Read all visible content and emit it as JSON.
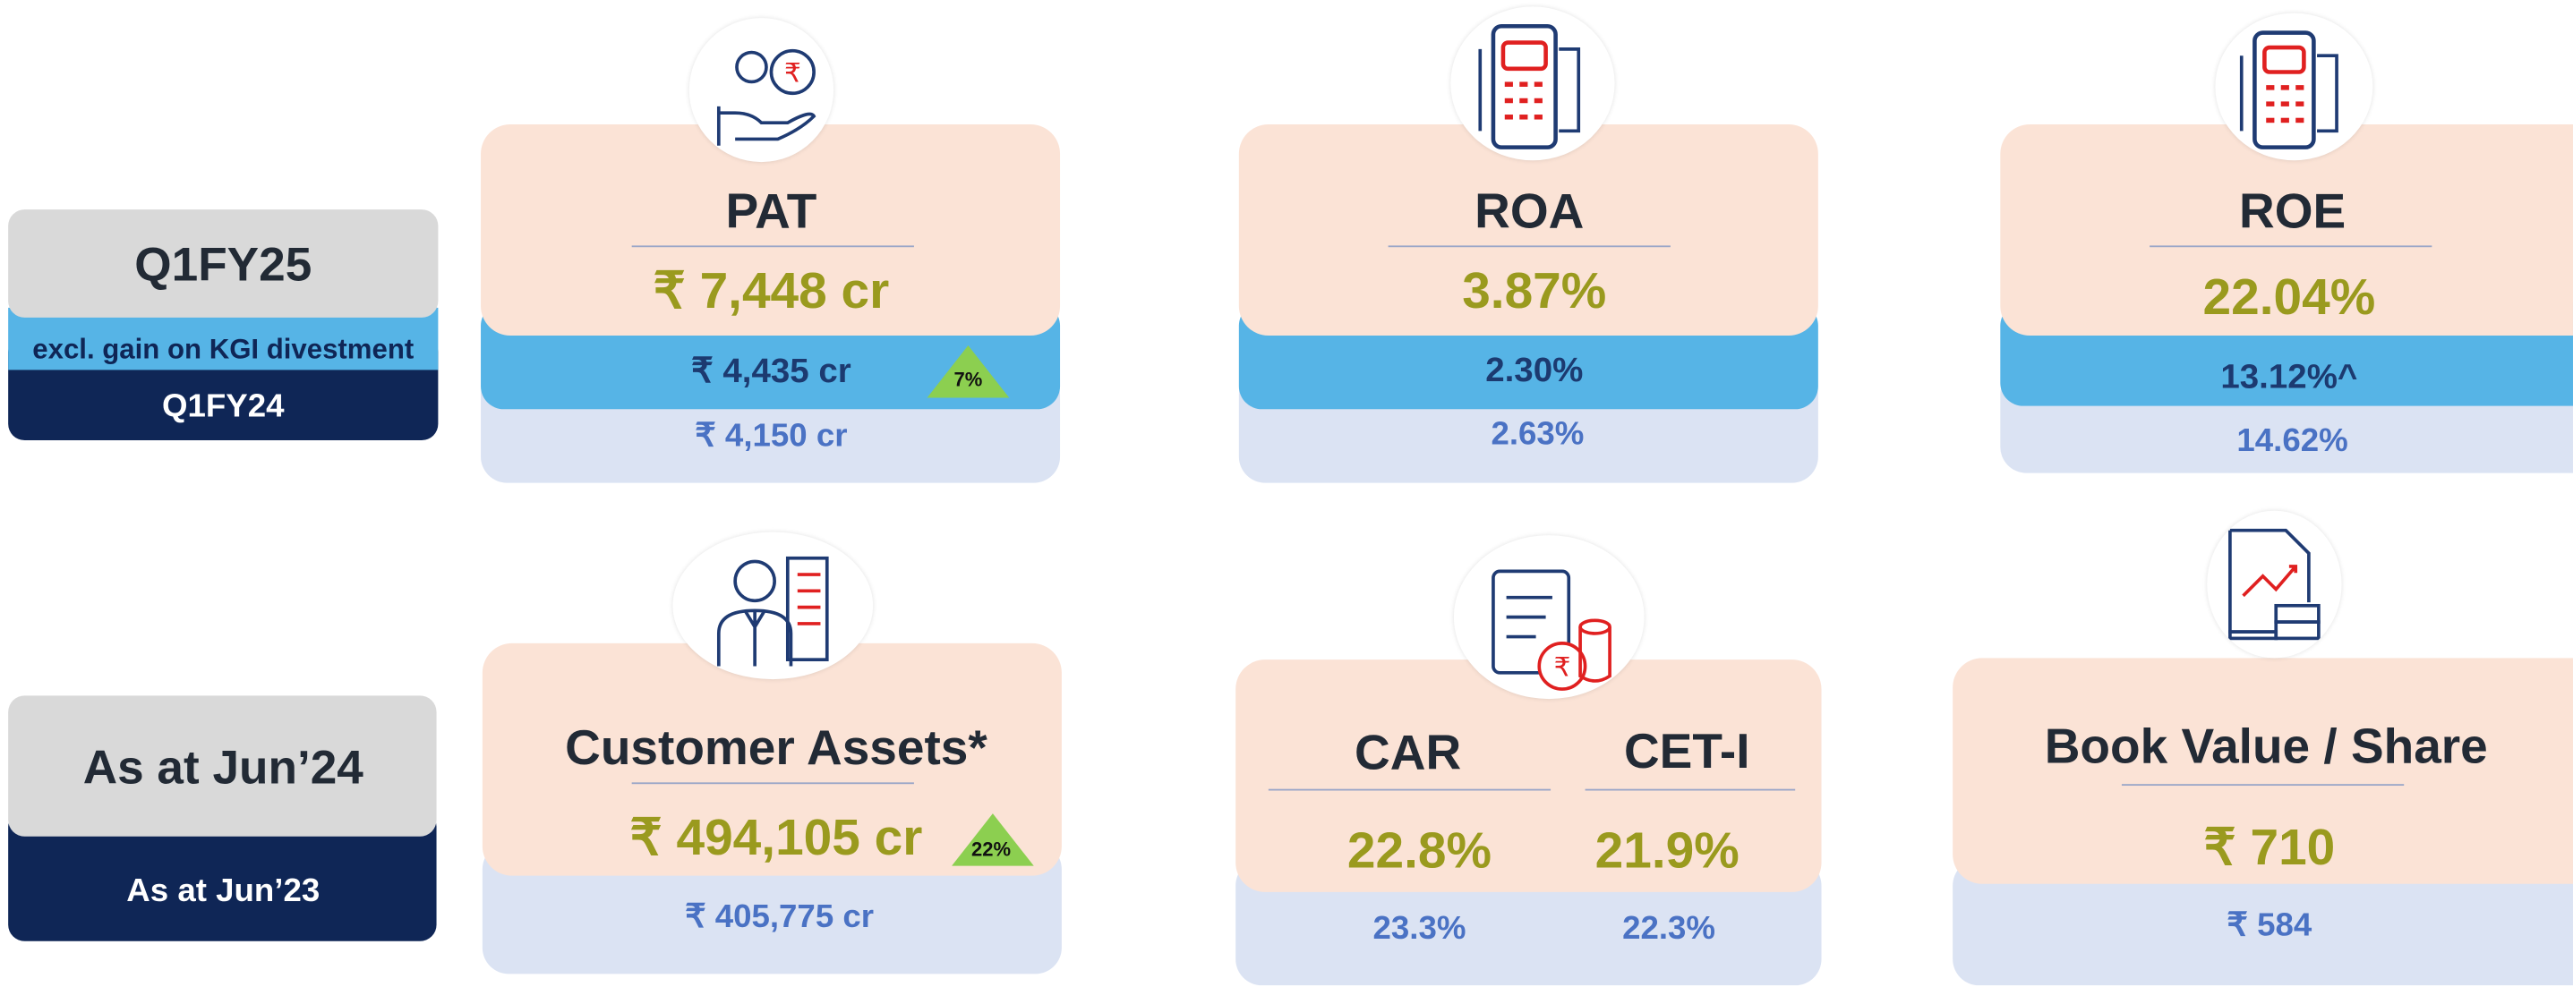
{
  "legend": {
    "current": "Q1FY25",
    "excl": "excl. gain on KGI divestment",
    "prior": "Q1FY24",
    "as_at_current": "As at Jun’24",
    "as_at_prior": "As at Jun’23"
  },
  "cards": [
    {
      "title": "PAT",
      "current": "₹ 7,448 cr",
      "excl": "₹ 4,435 cr",
      "growth": "7%",
      "prior": "₹ 4,150 cr"
    },
    {
      "title": "ROA",
      "current": "3.87%",
      "excl": "2.30%",
      "prior": "2.63%"
    },
    {
      "title": "ROE",
      "current": "22.04%",
      "excl": "13.12%^",
      "prior": "14.62%"
    }
  ],
  "balance_cards": [
    {
      "title": "Customer Assets*",
      "current": "₹ 494,105 cr",
      "growth": "22%",
      "prior": "₹ 405,775 cr"
    },
    {
      "metrics": [
        {
          "title": "CAR",
          "current": "22.8%",
          "prior": "23.3%"
        },
        {
          "title": "CET-I",
          "current": "21.9%",
          "prior": "22.3%"
        }
      ]
    },
    {
      "title": "Book Value / Share",
      "current": "₹ 710",
      "prior": "₹ 584"
    }
  ]
}
